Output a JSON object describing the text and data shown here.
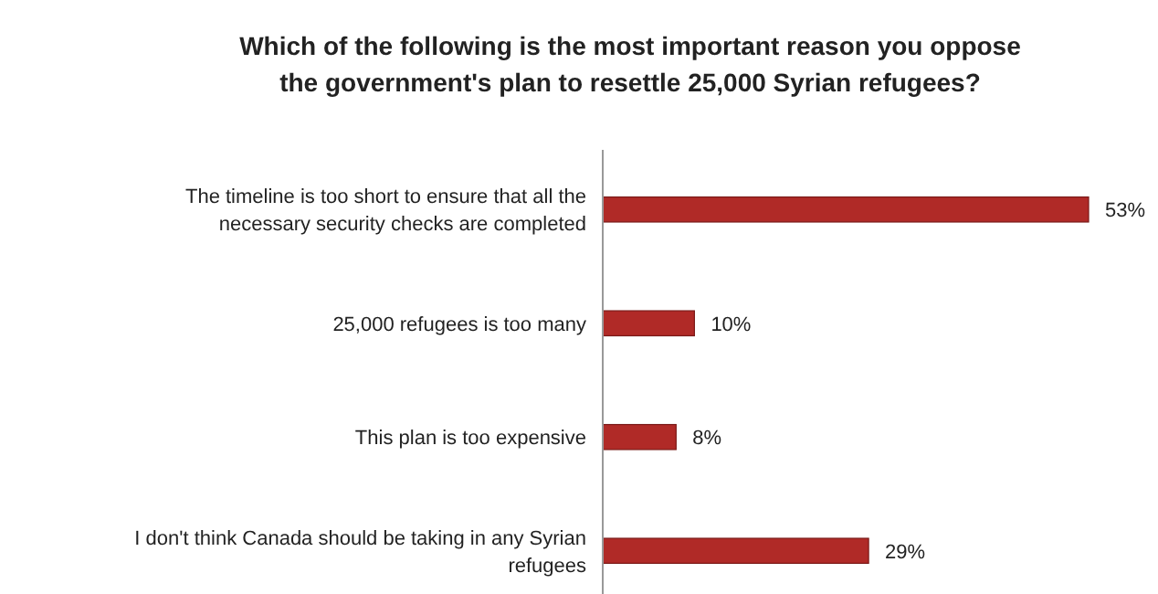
{
  "chart_data": {
    "type": "bar",
    "orientation": "horizontal",
    "title": "Which of the following is the most important reason you oppose the government's plan to resettle 25,000 Syrian refugees?",
    "categories": [
      "The timeline is too short to ensure that all the necessary security checks are completed",
      "25,000 refugees is too many",
      "This plan is too expensive",
      "I don't think Canada should be taking in any Syrian refugees"
    ],
    "values": [
      53,
      10,
      8,
      29
    ],
    "value_labels": [
      "53%",
      "10%",
      "8%",
      "29%"
    ],
    "color": "#b02a27"
  }
}
